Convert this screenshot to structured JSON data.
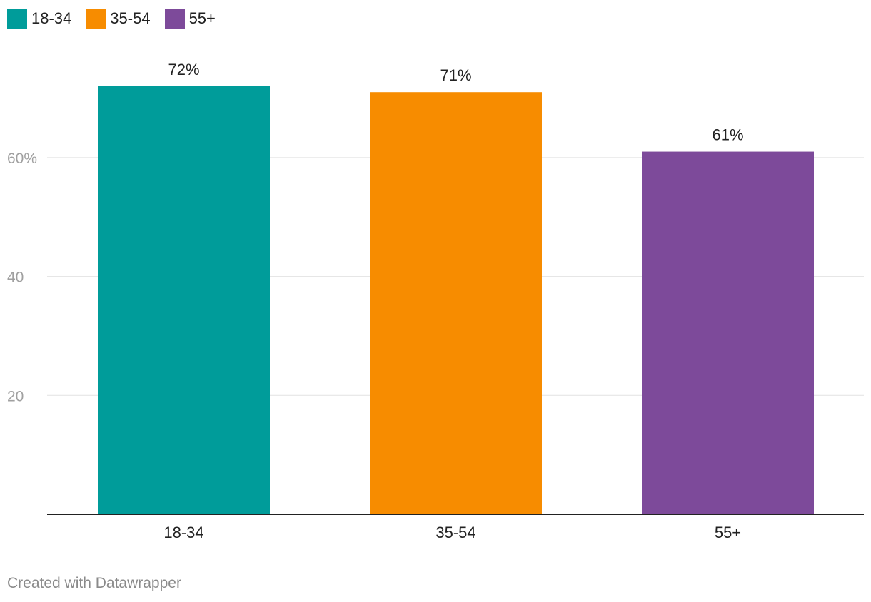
{
  "legend": {
    "items": [
      {
        "label": "18-34",
        "color": "#009c9a"
      },
      {
        "label": "35-54",
        "color": "#f78c00"
      },
      {
        "label": "55+",
        "color": "#7d4a9a"
      }
    ]
  },
  "chart_data": {
    "type": "bar",
    "categories": [
      "18-34",
      "35-54",
      "55+"
    ],
    "values": [
      72,
      71,
      61
    ],
    "value_labels": [
      "72%",
      "71%",
      "61%"
    ],
    "colors": [
      "#009c9a",
      "#f78c00",
      "#7d4a9a"
    ],
    "y_ticks": [
      {
        "value": 20,
        "label": "20"
      },
      {
        "value": 40,
        "label": "40"
      },
      {
        "value": 60,
        "label": "60%"
      }
    ],
    "ylim": [
      0,
      80
    ],
    "grid": true,
    "legend_position": "top-left"
  },
  "footer": {
    "credit": "Created with Datawrapper"
  }
}
